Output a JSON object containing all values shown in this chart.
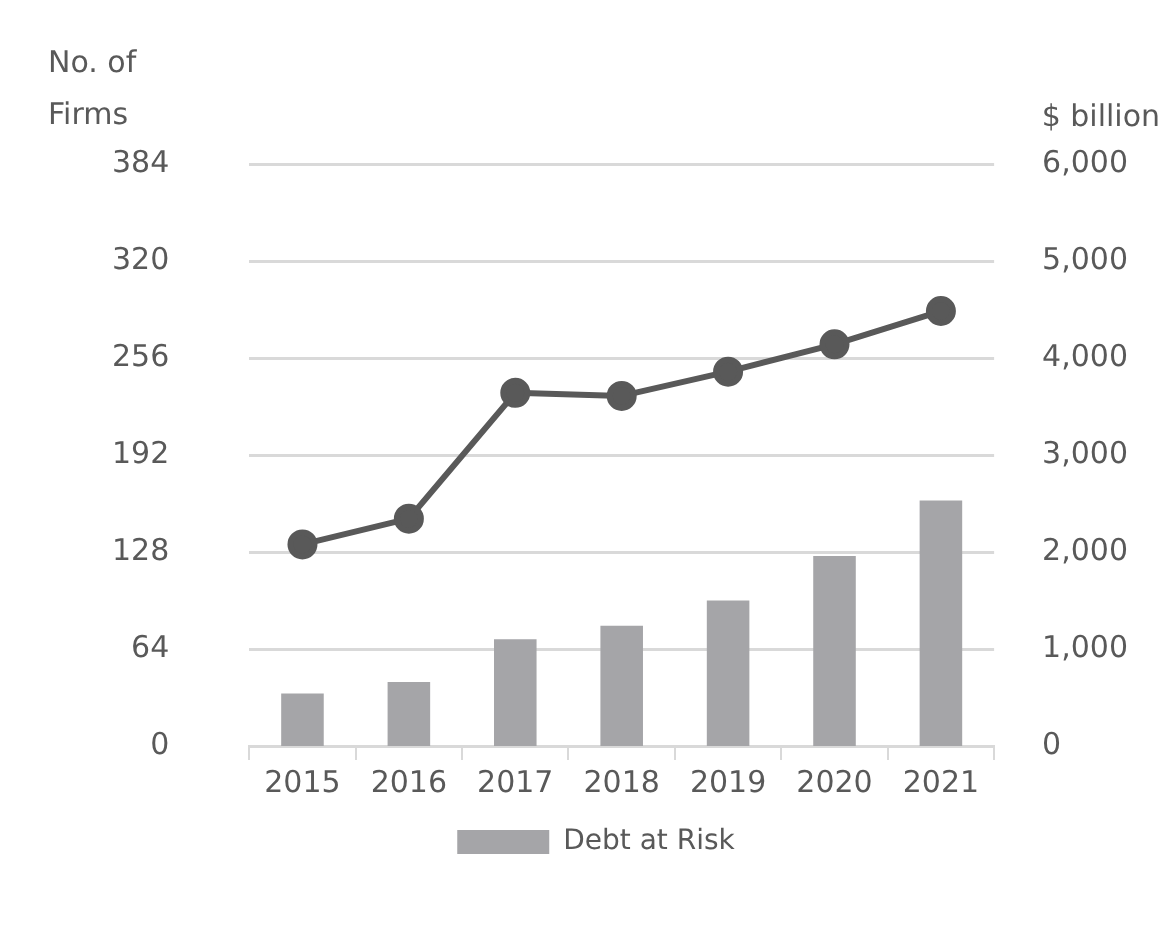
{
  "chart_data": {
    "type": "bar",
    "categories": [
      "2015",
      "2016",
      "2017",
      "2018",
      "2019",
      "2020",
      "2021"
    ],
    "ylabel": "No. of Firms",
    "y2label": "$ billion",
    "ylim": [
      0,
      384
    ],
    "yticks": [
      0,
      64,
      128,
      192,
      256,
      320,
      384
    ],
    "y2lim": [
      0,
      6000
    ],
    "y2ticks": [
      {
        "value": 0,
        "label": "0"
      },
      {
        "value": 1000,
        "label": "1,000"
      },
      {
        "value": 2000,
        "label": "2,000"
      },
      {
        "value": 3000,
        "label": "3,000"
      },
      {
        "value": 4000,
        "label": "4,000"
      },
      {
        "value": 5000,
        "label": "5,000"
      },
      {
        "value": 6000,
        "label": "6,000"
      }
    ],
    "series": [
      {
        "name": "Debt at Risk",
        "axis": "y2",
        "color": "#a5a5a8",
        "values": [
          540,
          660,
          1100,
          1240,
          1500,
          1960,
          2530
        ]
      },
      {
        "type": "line",
        "axis": "y",
        "color": "#595959",
        "marker": "circle",
        "values": [
          133,
          150,
          233,
          231,
          247,
          265,
          287
        ]
      }
    ],
    "grid": "y",
    "legend": "bottom"
  }
}
